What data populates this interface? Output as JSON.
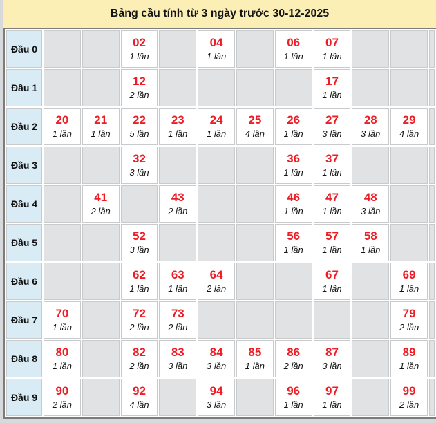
{
  "title": "Bảng cầu tính từ 3 ngày trước 30-12-2025",
  "colors": {
    "title_bg": "#FBEFB6",
    "label_cell_bg": "#D9EBF5",
    "empty_cell_bg": "#E1E2E4",
    "filled_cell_bg": "#FFFFFF",
    "number_red": "#EE1D25",
    "grid_line": "#C9CACC",
    "outer_border": "#7C7C7C",
    "page_bg": "#D8D9DB"
  },
  "chart_data": {
    "type": "table",
    "title": "Bảng cầu tính từ 3 ngày trước 30-12-2025",
    "unit": "lần",
    "row_labels": [
      "Đầu 0",
      "Đầu 1",
      "Đầu 2",
      "Đầu 3",
      "Đầu 4",
      "Đầu 5",
      "Đầu 6",
      "Đầu 7",
      "Đầu 8",
      "Đầu 9"
    ],
    "rows": [
      {
        "label": "Đầu 0",
        "cells": [
          null,
          null,
          {
            "number": "02",
            "count": 1,
            "count_label": "1 lần"
          },
          null,
          {
            "number": "04",
            "count": 1,
            "count_label": "1 lần"
          },
          null,
          {
            "number": "06",
            "count": 1,
            "count_label": "1 lần"
          },
          {
            "number": "07",
            "count": 1,
            "count_label": "1 lần"
          },
          null,
          null
        ]
      },
      {
        "label": "Đầu 1",
        "cells": [
          null,
          null,
          {
            "number": "12",
            "count": 2,
            "count_label": "2 lần"
          },
          null,
          null,
          null,
          null,
          {
            "number": "17",
            "count": 1,
            "count_label": "1 lần"
          },
          null,
          null
        ]
      },
      {
        "label": "Đầu 2",
        "cells": [
          {
            "number": "20",
            "count": 1,
            "count_label": "1 lần"
          },
          {
            "number": "21",
            "count": 1,
            "count_label": "1 lần"
          },
          {
            "number": "22",
            "count": 5,
            "count_label": "5 lần"
          },
          {
            "number": "23",
            "count": 1,
            "count_label": "1 lần"
          },
          {
            "number": "24",
            "count": 1,
            "count_label": "1 lần"
          },
          {
            "number": "25",
            "count": 4,
            "count_label": "4 lần"
          },
          {
            "number": "26",
            "count": 1,
            "count_label": "1 lần"
          },
          {
            "number": "27",
            "count": 3,
            "count_label": "3 lần"
          },
          {
            "number": "28",
            "count": 3,
            "count_label": "3 lần"
          },
          {
            "number": "29",
            "count": 4,
            "count_label": "4 lần"
          }
        ]
      },
      {
        "label": "Đầu 3",
        "cells": [
          null,
          null,
          {
            "number": "32",
            "count": 3,
            "count_label": "3 lần"
          },
          null,
          null,
          null,
          {
            "number": "36",
            "count": 1,
            "count_label": "1 lần"
          },
          {
            "number": "37",
            "count": 1,
            "count_label": "1 lần"
          },
          null,
          null
        ]
      },
      {
        "label": "Đầu 4",
        "cells": [
          null,
          {
            "number": "41",
            "count": 2,
            "count_label": "2 lần"
          },
          null,
          {
            "number": "43",
            "count": 2,
            "count_label": "2 lần"
          },
          null,
          null,
          {
            "number": "46",
            "count": 1,
            "count_label": "1 lần"
          },
          {
            "number": "47",
            "count": 1,
            "count_label": "1 lần"
          },
          {
            "number": "48",
            "count": 3,
            "count_label": "3 lần"
          },
          null
        ]
      },
      {
        "label": "Đầu 5",
        "cells": [
          null,
          null,
          {
            "number": "52",
            "count": 3,
            "count_label": "3 lần"
          },
          null,
          null,
          null,
          {
            "number": "56",
            "count": 1,
            "count_label": "1 lần"
          },
          {
            "number": "57",
            "count": 1,
            "count_label": "1 lần"
          },
          {
            "number": "58",
            "count": 1,
            "count_label": "1 lần"
          },
          null
        ]
      },
      {
        "label": "Đầu 6",
        "cells": [
          null,
          null,
          {
            "number": "62",
            "count": 1,
            "count_label": "1 lần"
          },
          {
            "number": "63",
            "count": 1,
            "count_label": "1 lần"
          },
          {
            "number": "64",
            "count": 2,
            "count_label": "2 lần"
          },
          null,
          null,
          {
            "number": "67",
            "count": 1,
            "count_label": "1 lần"
          },
          null,
          {
            "number": "69",
            "count": 1,
            "count_label": "1 lần"
          }
        ]
      },
      {
        "label": "Đầu 7",
        "cells": [
          {
            "number": "70",
            "count": 1,
            "count_label": "1 lần"
          },
          null,
          {
            "number": "72",
            "count": 2,
            "count_label": "2 lần"
          },
          {
            "number": "73",
            "count": 2,
            "count_label": "2 lần"
          },
          null,
          null,
          null,
          null,
          null,
          {
            "number": "79",
            "count": 2,
            "count_label": "2 lần"
          }
        ]
      },
      {
        "label": "Đầu 8",
        "cells": [
          {
            "number": "80",
            "count": 1,
            "count_label": "1 lần"
          },
          null,
          {
            "number": "82",
            "count": 2,
            "count_label": "2 lần"
          },
          {
            "number": "83",
            "count": 3,
            "count_label": "3 lần"
          },
          {
            "number": "84",
            "count": 3,
            "count_label": "3 lần"
          },
          {
            "number": "85",
            "count": 1,
            "count_label": "1 lần"
          },
          {
            "number": "86",
            "count": 2,
            "count_label": "2 lần"
          },
          {
            "number": "87",
            "count": 3,
            "count_label": "3 lần"
          },
          null,
          {
            "number": "89",
            "count": 1,
            "count_label": "1 lần"
          }
        ]
      },
      {
        "label": "Đầu 9",
        "cells": [
          {
            "number": "90",
            "count": 2,
            "count_label": "2 lần"
          },
          null,
          {
            "number": "92",
            "count": 4,
            "count_label": "4 lần"
          },
          null,
          {
            "number": "94",
            "count": 3,
            "count_label": "3 lần"
          },
          null,
          {
            "number": "96",
            "count": 1,
            "count_label": "1 lần"
          },
          {
            "number": "97",
            "count": 1,
            "count_label": "1 lần"
          },
          null,
          {
            "number": "99",
            "count": 2,
            "count_label": "2 lần"
          }
        ]
      }
    ]
  }
}
